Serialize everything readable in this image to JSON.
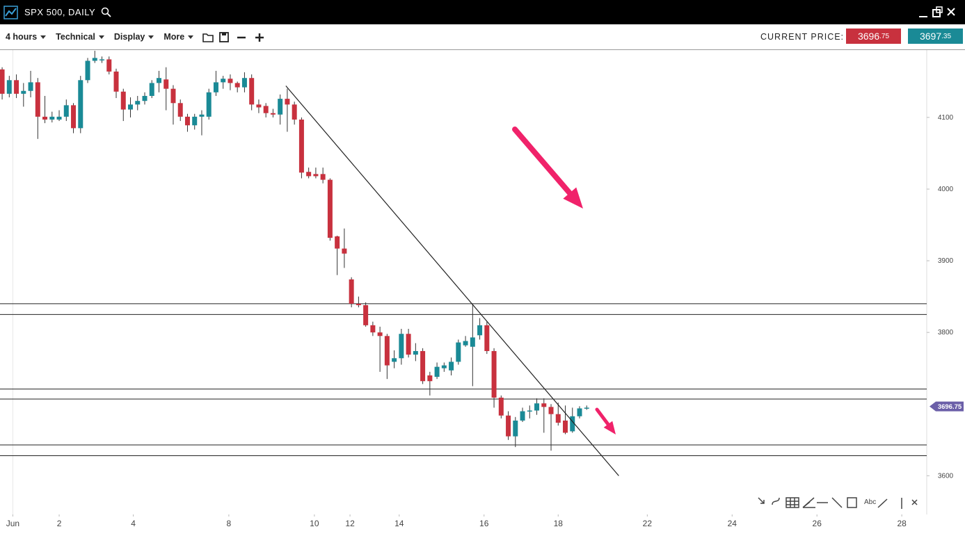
{
  "header": {
    "title": "SPX 500, DAILY"
  },
  "toolbar": {
    "menus": [
      "4 hours",
      "Technical",
      "Display",
      "More"
    ],
    "price_label": "CURRENT PRICE:",
    "bid": "3696.75",
    "ask": "3697.35"
  },
  "tools": {
    "text_tool": "Abc"
  },
  "chart_data": {
    "type": "candlestick",
    "open": [
      4167,
      4133,
      4152,
      4133,
      4137,
      4149,
      4101,
      4097,
      4097,
      4101,
      4117,
      4085,
      4152,
      4179,
      4180,
      4181,
      4164,
      4136,
      4111,
      4118,
      4123,
      4130,
      4148,
      4153,
      4140,
      4120,
      4101,
      4089,
      4101,
      4101,
      4135,
      4149,
      4154,
      4148,
      4142,
      4155,
      4118,
      4116,
      4106,
      4104,
      4126,
      4118,
      4097,
      4024,
      4021,
      4021,
      4013,
      3934,
      3917,
      3874,
      3840,
      3838,
      3810,
      3800,
      3795,
      3759,
      3764,
      3798,
      3769,
      3774,
      3740,
      3738,
      3750,
      3747,
      3759,
      3782,
      3780,
      3796,
      3810,
      3774,
      3709,
      3684,
      3655,
      3677,
      3690,
      3691,
      3701,
      3696,
      3686,
      3677,
      3662,
      3683,
      3694
    ],
    "high": [
      4170,
      4158,
      4160,
      4148,
      4165,
      4155,
      4130,
      4108,
      4110,
      4125,
      4120,
      4158,
      4183,
      4193,
      4185,
      4185,
      4168,
      4140,
      4128,
      4130,
      4135,
      4152,
      4165,
      4170,
      4145,
      4125,
      4105,
      4105,
      4110,
      4140,
      4165,
      4158,
      4160,
      4150,
      4163,
      4160,
      4125,
      4120,
      4112,
      4132,
      4140,
      4122,
      4100,
      4030,
      4030,
      4030,
      4015,
      3935,
      3945,
      3877,
      3850,
      3842,
      3815,
      3808,
      3798,
      3775,
      3805,
      3805,
      3785,
      3778,
      3745,
      3758,
      3758,
      3765,
      3790,
      3795,
      3840,
      3820,
      3815,
      3778,
      3712,
      3690,
      3682,
      3695,
      3698,
      3708,
      3708,
      3700,
      3702,
      3698,
      3695,
      3697,
      3698
    ],
    "low": [
      4125,
      4128,
      4127,
      4115,
      4128,
      4070,
      4092,
      4093,
      4095,
      4095,
      4078,
      4078,
      4148,
      4176,
      4176,
      4160,
      4127,
      4095,
      4100,
      4110,
      4118,
      4127,
      4135,
      4110,
      4090,
      4095,
      4080,
      4083,
      4075,
      4097,
      4130,
      4140,
      4138,
      4135,
      4135,
      4110,
      4106,
      4100,
      4100,
      4090,
      4080,
      4090,
      4015,
      4015,
      4015,
      4008,
      3928,
      3880,
      3890,
      3835,
      3835,
      3808,
      3795,
      3745,
      3735,
      3750,
      3755,
      3765,
      3760,
      3728,
      3712,
      3735,
      3745,
      3740,
      3755,
      3780,
      3725,
      3790,
      3770,
      3695,
      3680,
      3650,
      3640,
      3675,
      3680,
      3685,
      3660,
      3635,
      3670,
      3658,
      3660,
      3680,
      3692
    ],
    "close": [
      4133,
      4152,
      4133,
      4137,
      4149,
      4101,
      4097,
      4101,
      4101,
      4117,
      4085,
      4152,
      4179,
      4183,
      4181,
      4164,
      4136,
      4111,
      4118,
      4123,
      4130,
      4148,
      4155,
      4140,
      4120,
      4101,
      4089,
      4101,
      4104,
      4135,
      4149,
      4154,
      4148,
      4142,
      4155,
      4118,
      4114,
      4106,
      4104,
      4126,
      4118,
      4097,
      4023,
      4018,
      4018,
      4013,
      3932,
      3917,
      3910,
      3840,
      3838,
      3810,
      3800,
      3795,
      3754,
      3764,
      3798,
      3769,
      3774,
      3732,
      3732,
      3752,
      3754,
      3759,
      3786,
      3788,
      3793,
      3810,
      3774,
      3709,
      3684,
      3655,
      3677,
      3690,
      3691,
      3701,
      3696,
      3686,
      3674,
      3660,
      3683,
      3694,
      3695
    ],
    "up_color": "#1a8a96",
    "down_color": "#c8313e",
    "xlim": [
      -0.3,
      129.7
    ],
    "xticks": [
      {
        "value": 1.5,
        "label": "Jun"
      },
      {
        "value": 8,
        "label": "2"
      },
      {
        "value": 18.4,
        "label": "4"
      },
      {
        "value": 31.8,
        "label": "8"
      },
      {
        "value": 43.8,
        "label": "10"
      },
      {
        "value": 48.8,
        "label": "12"
      },
      {
        "value": 55.7,
        "label": "14"
      },
      {
        "value": 67.6,
        "label": "16"
      },
      {
        "value": 78,
        "label": "18"
      },
      {
        "value": 90.5,
        "label": "22"
      },
      {
        "value": 102.4,
        "label": "24"
      },
      {
        "value": 114.3,
        "label": "26"
      },
      {
        "value": 126.2,
        "label": "28"
      }
    ],
    "ylim": [
      3546,
      4194
    ],
    "yticks": [
      3600,
      3800,
      3900,
      4000,
      4100
    ],
    "hlines": [
      3840,
      3825,
      3721,
      3707,
      3643,
      3628
    ],
    "trendline": {
      "x": [
        39.8,
        86.5
      ],
      "y": [
        4144,
        3600
      ]
    },
    "last_price": 3696.75,
    "last_price_color": "#6b5fa8"
  }
}
